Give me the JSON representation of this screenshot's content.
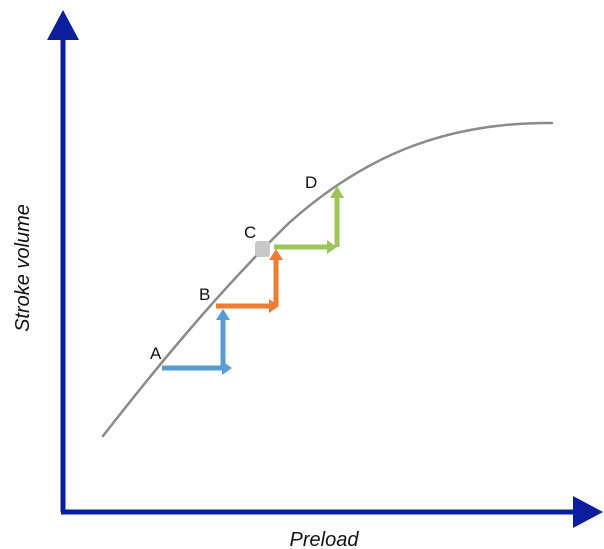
{
  "axes": {
    "x_label": "Preload",
    "y_label": "Stroke volume"
  },
  "points": [
    {
      "label": "A"
    },
    {
      "label": "B"
    },
    {
      "label": "C"
    },
    {
      "label": "D"
    }
  ],
  "colors": {
    "axis": "#0b1f9e",
    "curve": "#8a8a8a",
    "step_a": "#5b9bd5",
    "step_b": "#ed7d31",
    "step_c": "#9dc55a",
    "point_c": "#c8c8c8"
  }
}
